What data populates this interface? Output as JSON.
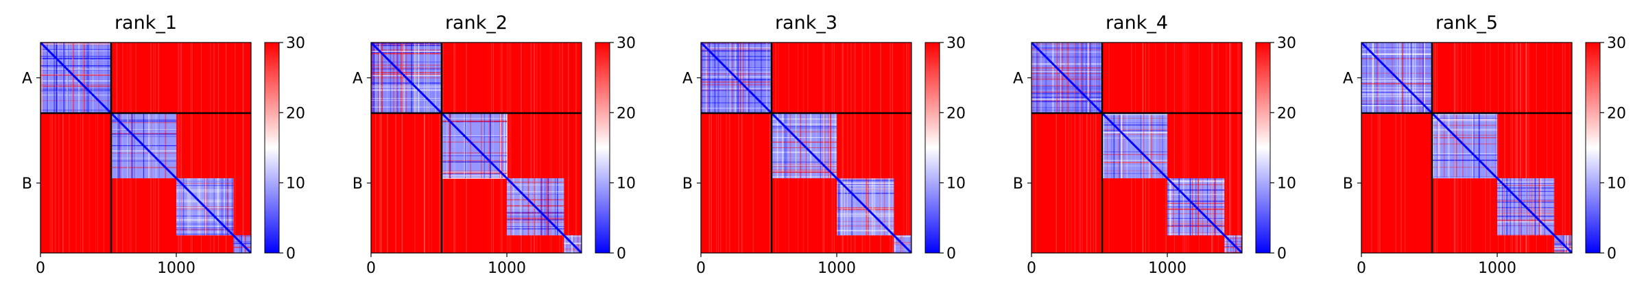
{
  "colormap": {
    "name": "bwr",
    "low_color": "#0000ff",
    "mid_color": "#ffffff",
    "high_color": "#ff0000",
    "contact_color": "#0000ff",
    "background_color": "#ff0000",
    "divider_color": "#000000"
  },
  "chart_data": [
    {
      "type": "heatmap",
      "title": "rank_1",
      "xlabel": "",
      "ylabel": "",
      "x_ticks": [
        "0",
        "1000"
      ],
      "y_ticks": [
        "A",
        "B"
      ],
      "colorbar_ticks": [
        "0",
        "10",
        "20",
        "30"
      ],
      "vmin": 0,
      "vmax": 30,
      "xlim": [
        0,
        1550
      ],
      "ylim": [
        1550,
        0
      ],
      "chain_boundaries": [
        520
      ],
      "chains": [
        "A",
        "B"
      ],
      "subdomain_boundaries": [
        520,
        1000,
        1420
      ]
    },
    {
      "type": "heatmap",
      "title": "rank_2",
      "xlabel": "",
      "ylabel": "",
      "x_ticks": [
        "0",
        "1000"
      ],
      "y_ticks": [
        "A",
        "B"
      ],
      "colorbar_ticks": [
        "0",
        "10",
        "20",
        "30"
      ],
      "vmin": 0,
      "vmax": 30,
      "xlim": [
        0,
        1550
      ],
      "ylim": [
        1550,
        0
      ],
      "chain_boundaries": [
        520
      ],
      "chains": [
        "A",
        "B"
      ],
      "subdomain_boundaries": [
        520,
        1000,
        1420
      ]
    },
    {
      "type": "heatmap",
      "title": "rank_3",
      "xlabel": "",
      "ylabel": "",
      "x_ticks": [
        "0",
        "1000"
      ],
      "y_ticks": [
        "A",
        "B"
      ],
      "colorbar_ticks": [
        "0",
        "10",
        "20",
        "30"
      ],
      "vmin": 0,
      "vmax": 30,
      "xlim": [
        0,
        1550
      ],
      "ylim": [
        1550,
        0
      ],
      "chain_boundaries": [
        520
      ],
      "chains": [
        "A",
        "B"
      ],
      "subdomain_boundaries": [
        520,
        1000,
        1420
      ]
    },
    {
      "type": "heatmap",
      "title": "rank_4",
      "xlabel": "",
      "ylabel": "",
      "x_ticks": [
        "0",
        "1000"
      ],
      "y_ticks": [
        "A",
        "B"
      ],
      "colorbar_ticks": [
        "0",
        "10",
        "20",
        "30"
      ],
      "vmin": 0,
      "vmax": 30,
      "xlim": [
        0,
        1550
      ],
      "ylim": [
        1550,
        0
      ],
      "chain_boundaries": [
        520
      ],
      "chains": [
        "A",
        "B"
      ],
      "subdomain_boundaries": [
        520,
        1000,
        1420
      ]
    },
    {
      "type": "heatmap",
      "title": "rank_5",
      "xlabel": "",
      "ylabel": "",
      "x_ticks": [
        "0",
        "1000"
      ],
      "y_ticks": [
        "A",
        "B"
      ],
      "colorbar_ticks": [
        "0",
        "10",
        "20",
        "30"
      ],
      "vmin": 0,
      "vmax": 30,
      "xlim": [
        0,
        1550
      ],
      "ylim": [
        1550,
        0
      ],
      "chain_boundaries": [
        520
      ],
      "chains": [
        "A",
        "B"
      ],
      "subdomain_boundaries": [
        520,
        1000,
        1420
      ]
    }
  ]
}
